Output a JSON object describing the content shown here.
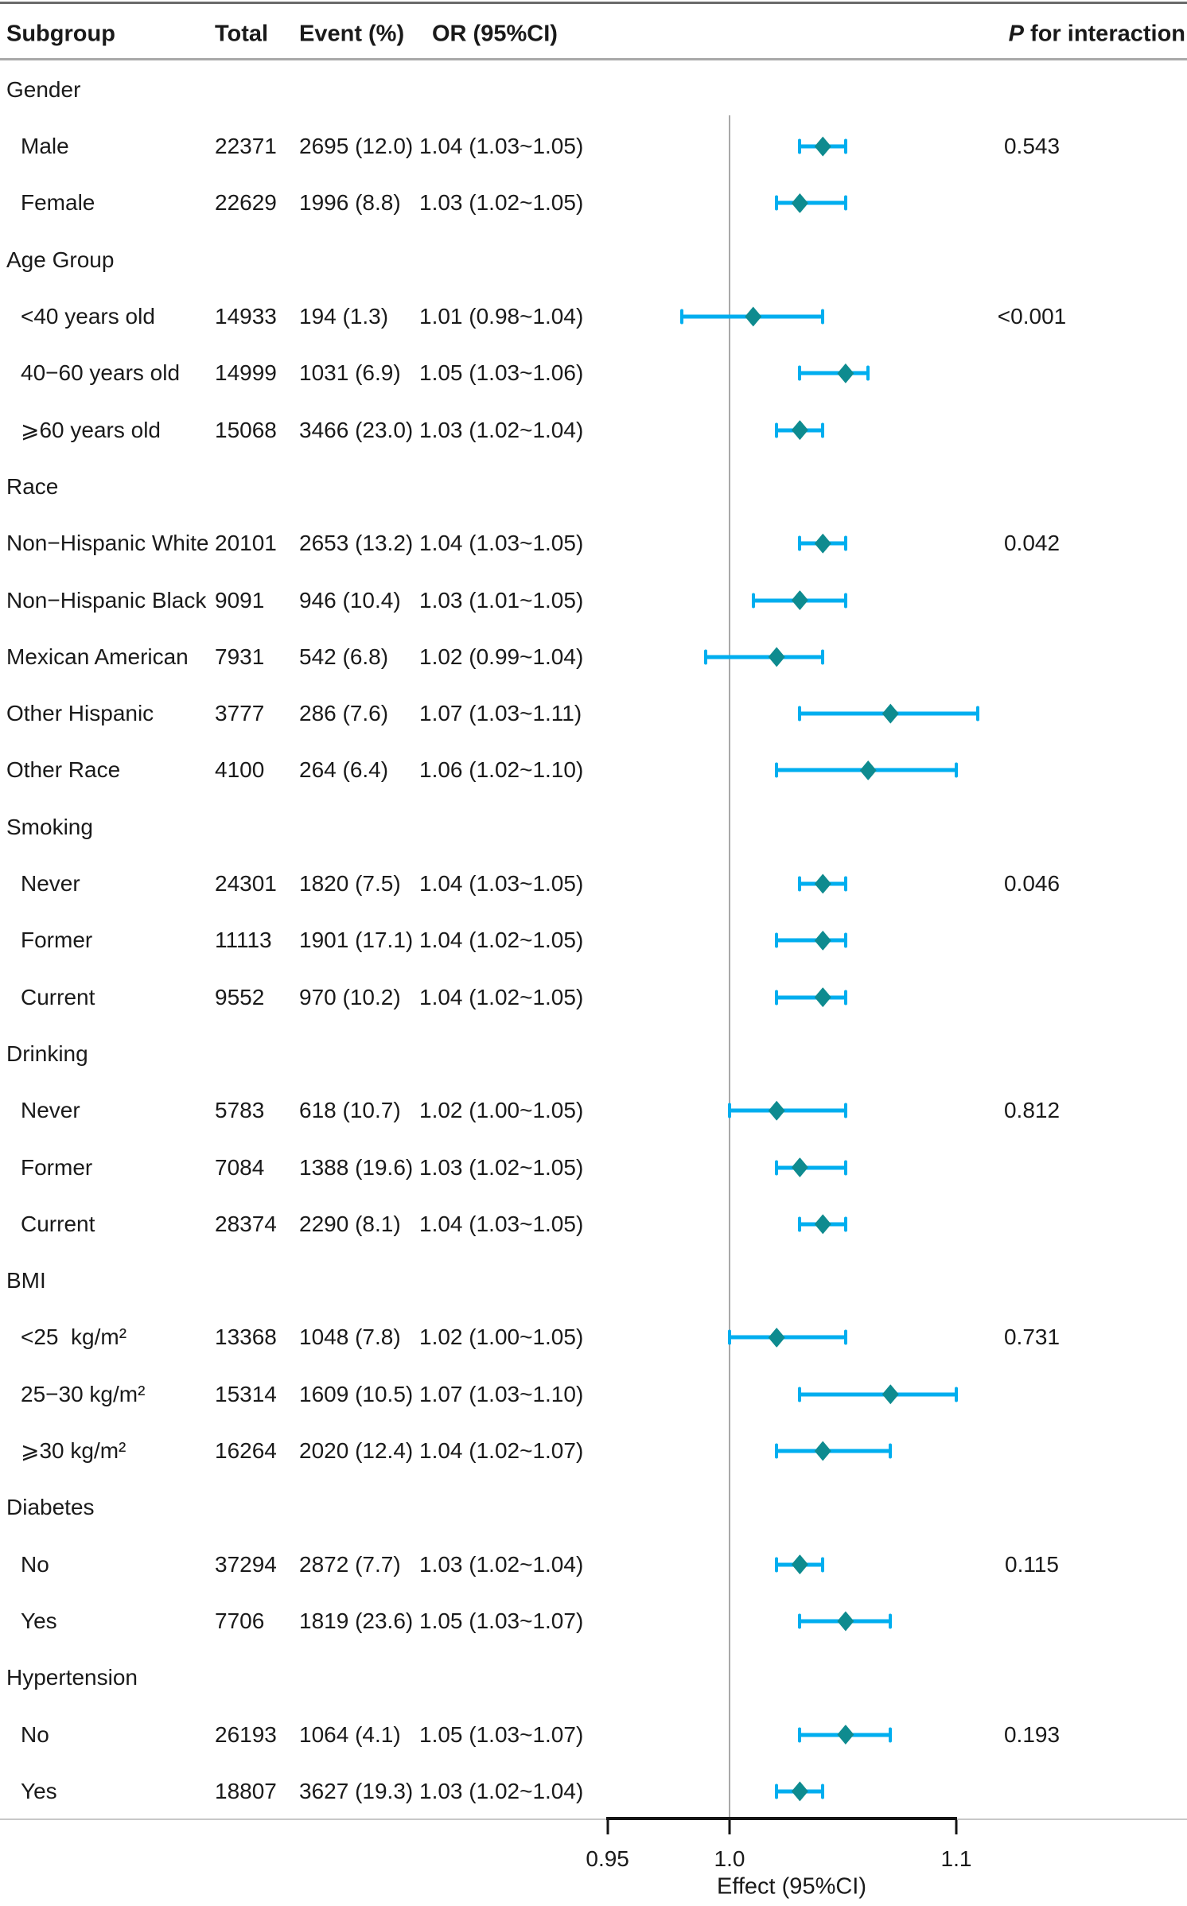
{
  "header": {
    "subgroup": "Subgroup",
    "total": "Total",
    "event": "Event (%)",
    "or": "OR (95%CI)",
    "p_italic": "P",
    "p_rest": " for interaction"
  },
  "colors": {
    "ci_bar": "#00AEEF",
    "diamond": "#0E8B8F",
    "reference_line": "#A9A9A9",
    "axis": "#141414",
    "text": "#1A1A1A"
  },
  "chart_data": {
    "type": "scatter",
    "variant": "forest-plot-horizontal-error-bars",
    "title": "",
    "xlabel": "Effect (95%CI)",
    "xscale": "log",
    "x_ticks": [
      0.95,
      1.0,
      1.1
    ],
    "x_tick_labels": [
      "0.95",
      "1.0",
      "1.1"
    ],
    "reference_line": 1.0,
    "legend": "none",
    "grid": "off",
    "rows": [
      {
        "type": "group",
        "label": "Gender"
      },
      {
        "type": "item",
        "indent": 1,
        "label": "Male",
        "total": "22371",
        "event": "2695 (12.0)",
        "or_text": "1.04 (1.03~1.05)",
        "or": 1.04,
        "lo": 1.03,
        "hi": 1.05,
        "p": "0.543"
      },
      {
        "type": "item",
        "indent": 1,
        "label": "Female",
        "total": "22629",
        "event": "1996 (8.8)",
        "or_text": "1.03 (1.02~1.05)",
        "or": 1.03,
        "lo": 1.02,
        "hi": 1.05
      },
      {
        "type": "group",
        "label": "Age Group"
      },
      {
        "type": "item",
        "indent": 1,
        "label": "<40 years old",
        "total": "14933",
        "event": "194 (1.3)",
        "or_text": "1.01 (0.98~1.04)",
        "or": 1.01,
        "lo": 0.98,
        "hi": 1.04,
        "p": "<0.001"
      },
      {
        "type": "item",
        "indent": 1,
        "label": "40−60 years old",
        "total": "14999",
        "event": "1031 (6.9)",
        "or_text": "1.05 (1.03~1.06)",
        "or": 1.05,
        "lo": 1.03,
        "hi": 1.06
      },
      {
        "type": "item",
        "indent": 1,
        "label": "⩾60 years old",
        "total": "15068",
        "event": "3466 (23.0)",
        "or_text": "1.03 (1.02~1.04)",
        "or": 1.03,
        "lo": 1.02,
        "hi": 1.04
      },
      {
        "type": "group",
        "label": "Race"
      },
      {
        "type": "item",
        "indent": 0,
        "label": "Non−Hispanic White",
        "total": "20101",
        "event": "2653 (13.2)",
        "or_text": "1.04 (1.03~1.05)",
        "or": 1.04,
        "lo": 1.03,
        "hi": 1.05,
        "p": "0.042"
      },
      {
        "type": "item",
        "indent": 0,
        "label": "Non−Hispanic Black",
        "total": "9091",
        "event": "946 (10.4)",
        "or_text": "1.03 (1.01~1.05)",
        "or": 1.03,
        "lo": 1.01,
        "hi": 1.05
      },
      {
        "type": "item",
        "indent": 0,
        "label": "Mexican American",
        "total": "7931",
        "event": "542 (6.8)",
        "or_text": "1.02 (0.99~1.04)",
        "or": 1.02,
        "lo": 0.99,
        "hi": 1.04
      },
      {
        "type": "item",
        "indent": 0,
        "label": "Other Hispanic",
        "total": "3777",
        "event": "286 (7.6)",
        "or_text": "1.07 (1.03~1.11)",
        "or": 1.07,
        "lo": 1.03,
        "hi": 1.11
      },
      {
        "type": "item",
        "indent": 0,
        "label": "Other Race",
        "total": "4100",
        "event": "264 (6.4)",
        "or_text": "1.06 (1.02~1.10)",
        "or": 1.06,
        "lo": 1.02,
        "hi": 1.1
      },
      {
        "type": "group",
        "label": "Smoking"
      },
      {
        "type": "item",
        "indent": 1,
        "label": "Never",
        "total": "24301",
        "event": "1820 (7.5)",
        "or_text": "1.04 (1.03~1.05)",
        "or": 1.04,
        "lo": 1.03,
        "hi": 1.05,
        "p": "0.046"
      },
      {
        "type": "item",
        "indent": 1,
        "label": "Former",
        "total": "11113",
        "event": "1901 (17.1)",
        "or_text": "1.04 (1.02~1.05)",
        "or": 1.04,
        "lo": 1.02,
        "hi": 1.05
      },
      {
        "type": "item",
        "indent": 1,
        "label": "Current",
        "total": "9552",
        "event": "970 (10.2)",
        "or_text": "1.04 (1.02~1.05)",
        "or": 1.04,
        "lo": 1.02,
        "hi": 1.05
      },
      {
        "type": "group",
        "label": "Drinking"
      },
      {
        "type": "item",
        "indent": 1,
        "label": "Never",
        "total": "5783",
        "event": "618 (10.7)",
        "or_text": "1.02 (1.00~1.05)",
        "or": 1.02,
        "lo": 1.0,
        "hi": 1.05,
        "p": "0.812"
      },
      {
        "type": "item",
        "indent": 1,
        "label": "Former",
        "total": "7084",
        "event": "1388 (19.6)",
        "or_text": "1.03 (1.02~1.05)",
        "or": 1.03,
        "lo": 1.02,
        "hi": 1.05
      },
      {
        "type": "item",
        "indent": 1,
        "label": "Current",
        "total": "28374",
        "event": "2290 (8.1)",
        "or_text": "1.04 (1.03~1.05)",
        "or": 1.04,
        "lo": 1.03,
        "hi": 1.05
      },
      {
        "type": "group",
        "label": "BMI"
      },
      {
        "type": "item",
        "indent": 1,
        "label": "<25  kg/m²",
        "total": "13368",
        "event": "1048 (7.8)",
        "or_text": "1.02 (1.00~1.05)",
        "or": 1.02,
        "lo": 1.0,
        "hi": 1.05,
        "p": "0.731"
      },
      {
        "type": "item",
        "indent": 1,
        "label": "25−30 kg/m²",
        "total": "15314",
        "event": "1609 (10.5)",
        "or_text": "1.07 (1.03~1.10)",
        "or": 1.07,
        "lo": 1.03,
        "hi": 1.1
      },
      {
        "type": "item",
        "indent": 1,
        "label": "⩾30 kg/m²",
        "total": "16264",
        "event": "2020 (12.4)",
        "or_text": "1.04 (1.02~1.07)",
        "or": 1.04,
        "lo": 1.02,
        "hi": 1.07
      },
      {
        "type": "group",
        "label": "Diabetes"
      },
      {
        "type": "item",
        "indent": 1,
        "label": "No",
        "total": "37294",
        "event": "2872 (7.7)",
        "or_text": "1.03 (1.02~1.04)",
        "or": 1.03,
        "lo": 1.02,
        "hi": 1.04,
        "p": "0.115"
      },
      {
        "type": "item",
        "indent": 1,
        "label": "Yes",
        "total": "7706",
        "event": "1819 (23.6)",
        "or_text": "1.05 (1.03~1.07)",
        "or": 1.05,
        "lo": 1.03,
        "hi": 1.07
      },
      {
        "type": "group",
        "label": "Hypertension"
      },
      {
        "type": "item",
        "indent": 1,
        "label": "No",
        "total": "26193",
        "event": "1064 (4.1)",
        "or_text": "1.05 (1.03~1.07)",
        "or": 1.05,
        "lo": 1.03,
        "hi": 1.07,
        "p": "0.193"
      },
      {
        "type": "item",
        "indent": 1,
        "label": "Yes",
        "total": "18807",
        "event": "3627 (19.3)",
        "or_text": "1.03 (1.02~1.04)",
        "or": 1.03,
        "lo": 1.02,
        "hi": 1.04
      }
    ]
  }
}
